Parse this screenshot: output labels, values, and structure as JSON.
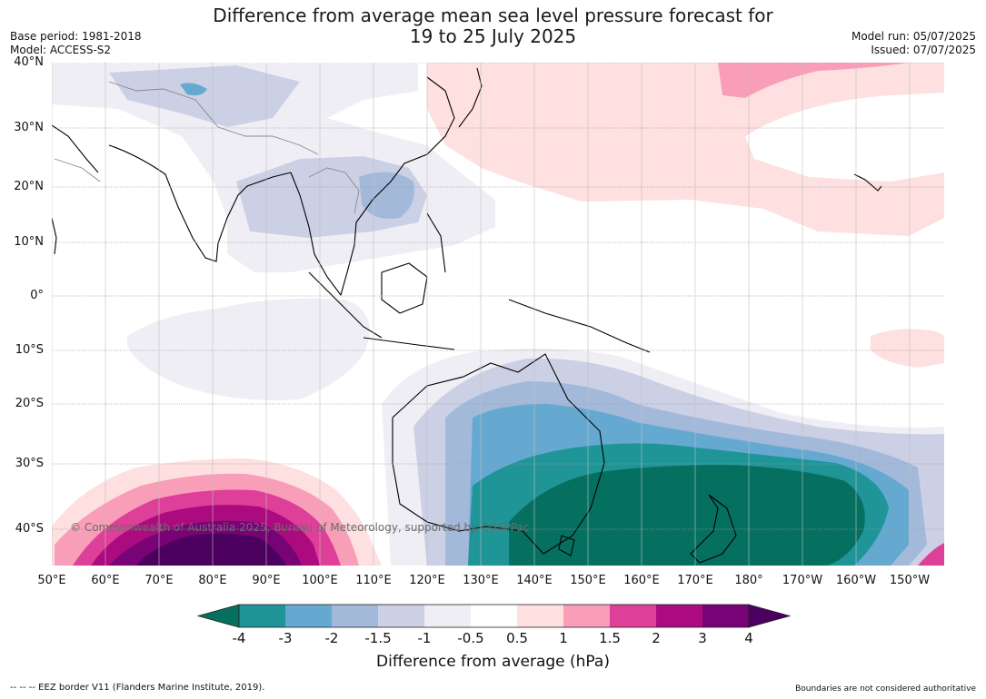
{
  "header": {
    "title_line1": "Difference from average mean sea level pressure forecast for",
    "title_line2": "19 to 25 July 2025",
    "base_period": "Base period: 1981-2018",
    "model": "Model: ACCESS-S2",
    "model_run": "Model run: 05/07/2025",
    "issued": "Issued: 07/07/2025"
  },
  "map": {
    "latitude_labels": [
      "40°N",
      "30°N",
      "20°N",
      "10°N",
      "0°",
      "10°S",
      "20°S",
      "30°S",
      "40°S"
    ],
    "longitude_labels": [
      "50°E",
      "60°E",
      "70°E",
      "80°E",
      "90°E",
      "100°E",
      "110°E",
      "120°E",
      "130°E",
      "140°E",
      "150°E",
      "160°E",
      "170°E",
      "180°",
      "170°W",
      "160°W",
      "150°W"
    ],
    "copyright": "© Commonwealth of Australia 2025, Bureau of Meteorology, supported by COSPPac"
  },
  "colorbar": {
    "ticks": [
      "-4",
      "-3",
      "-2",
      "-1.5",
      "-1",
      "-0.5",
      "0.5",
      "1",
      "1.5",
      "2",
      "3",
      "4"
    ],
    "colors": [
      "#067060",
      "#1f9597",
      "#65a9d1",
      "#a3b9da",
      "#ccd0e5",
      "#f0eef5",
      "#ffffff",
      "#fde0df",
      "#f99eb8",
      "#de3f98",
      "#ac0b80",
      "#770376",
      "#4b005f"
    ],
    "title": "Difference from average (hPa)"
  },
  "footer": {
    "eez_note": "--  --  -- EEZ border V11 (Flanders Marine Institute, 2019).",
    "disclaimer": "Boundaries are not considered authoritative"
  }
}
